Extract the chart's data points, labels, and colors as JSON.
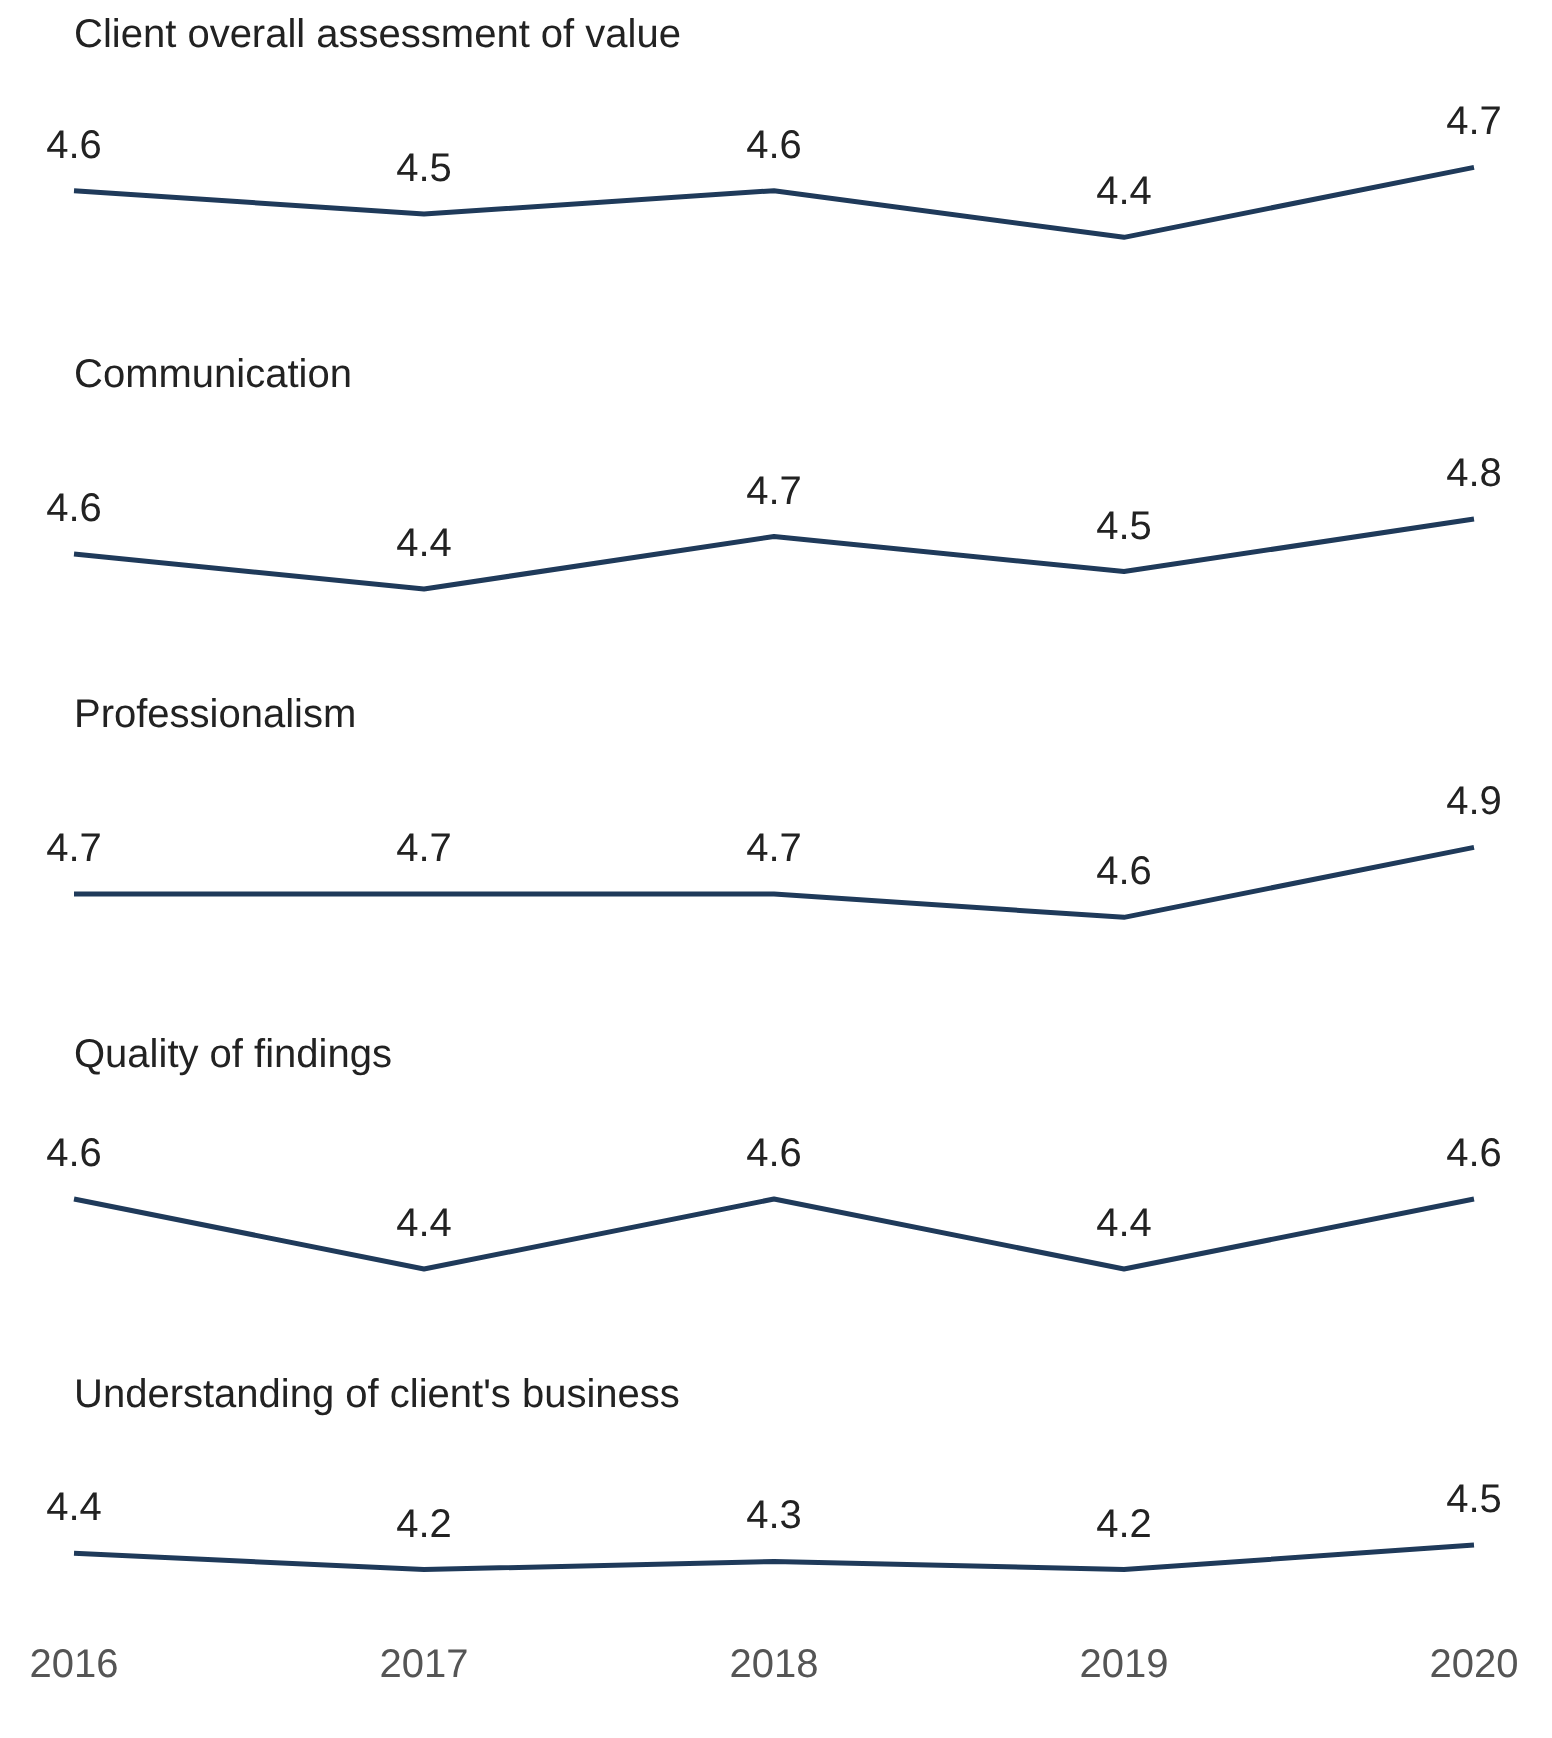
{
  "chart_data": [
    {
      "type": "line",
      "title": "Client overall assessment of value",
      "categories": [
        "2016",
        "2017",
        "2018",
        "2019",
        "2020"
      ],
      "values": [
        4.6,
        4.5,
        4.6,
        4.4,
        4.7
      ],
      "color": "#1f3a5a",
      "data_labels": true,
      "tick_labels": false
    },
    {
      "type": "line",
      "title": "Communication",
      "categories": [
        "2016",
        "2017",
        "2018",
        "2019",
        "2020"
      ],
      "values": [
        4.6,
        4.4,
        4.7,
        4.5,
        4.8
      ],
      "color": "#1f3a5a",
      "data_labels": true,
      "tick_labels": false
    },
    {
      "type": "line",
      "title": "Professionalism",
      "categories": [
        "2016",
        "2017",
        "2018",
        "2019",
        "2020"
      ],
      "values": [
        4.7,
        4.7,
        4.7,
        4.6,
        4.9
      ],
      "color": "#1f3a5a",
      "data_labels": true,
      "tick_labels": false
    },
    {
      "type": "line",
      "title": "Quality of findings",
      "categories": [
        "2016",
        "2017",
        "2018",
        "2019",
        "2020"
      ],
      "values": [
        4.6,
        4.4,
        4.6,
        4.4,
        4.6
      ],
      "color": "#1f3a5a",
      "data_labels": true,
      "tick_labels": false
    },
    {
      "type": "line",
      "title": "Understanding of client's business",
      "categories": [
        "2016",
        "2017",
        "2018",
        "2019",
        "2020"
      ],
      "values": [
        4.4,
        4.2,
        4.3,
        4.2,
        4.5
      ],
      "color": "#1f3a5a",
      "data_labels": true,
      "tick_labels": "x"
    }
  ]
}
